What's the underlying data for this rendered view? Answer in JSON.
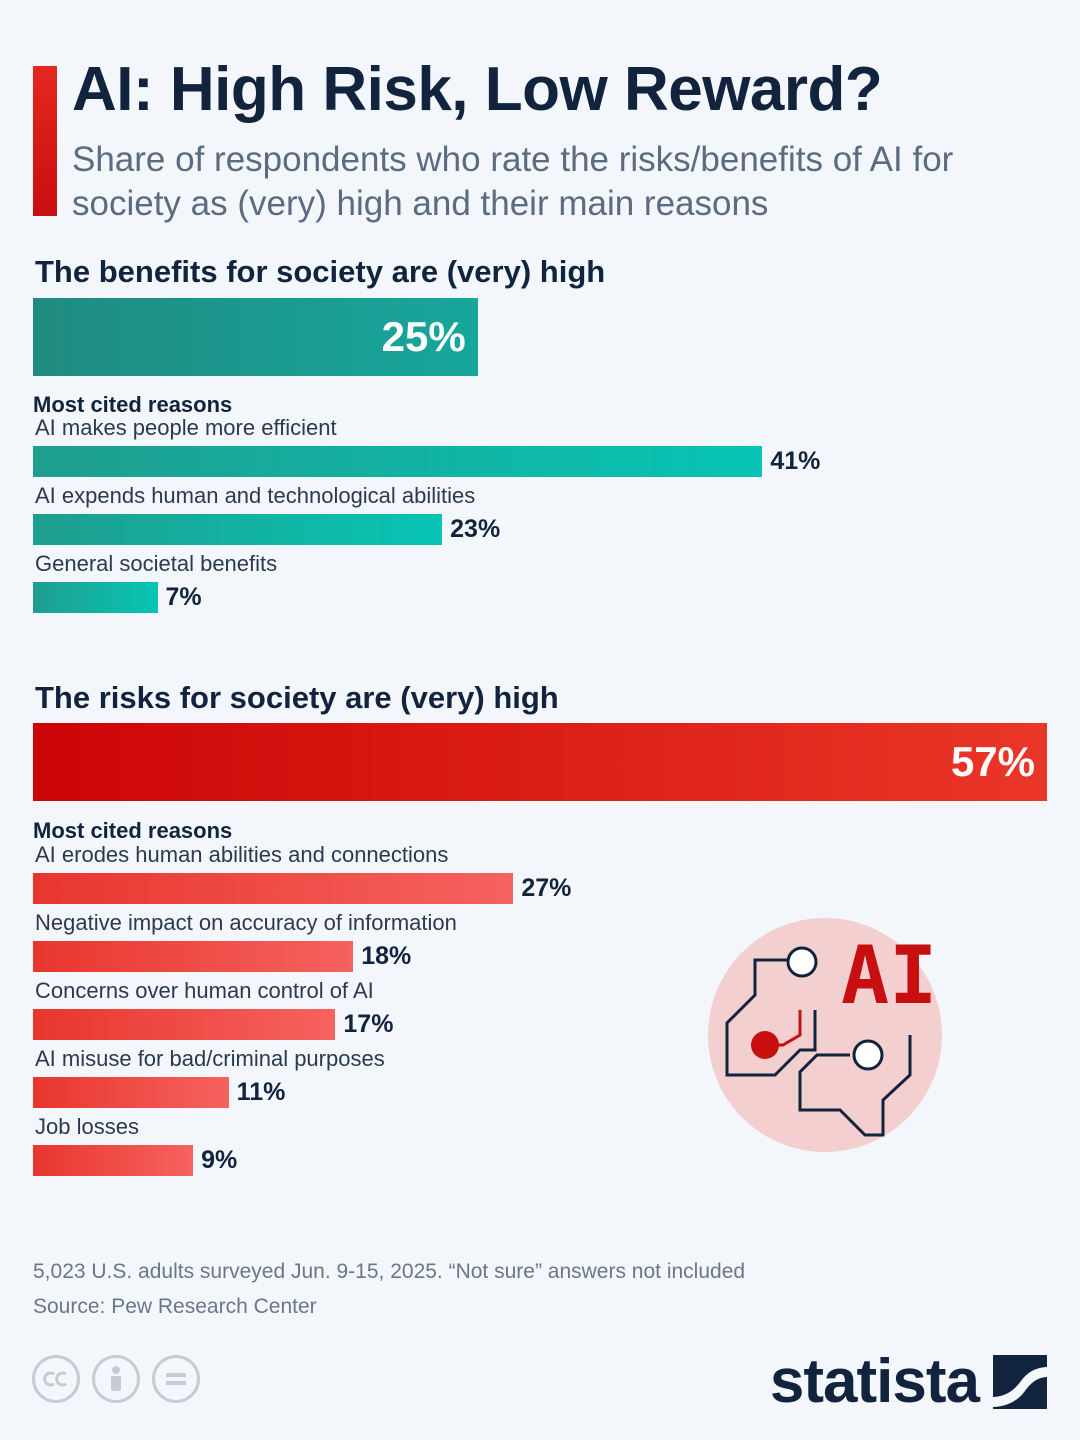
{
  "header": {
    "title": "AI: High Risk, Low Reward?",
    "subtitle": "Share of respondents who rate the risks/benefits of AI for society as (very) high and their main reasons"
  },
  "chart_data": [
    {
      "type": "bar",
      "orientation": "horizontal",
      "title": "The benefits for society are (very) high",
      "headline_value": 25,
      "headline_label": "25%",
      "reasons_heading": "Most cited reasons",
      "categories": [
        "AI makes people more efficient",
        "AI expends human and technological abilities",
        "General societal benefits"
      ],
      "values": [
        41,
        23,
        7
      ],
      "value_labels": [
        "41%",
        "23%",
        "7%"
      ],
      "unit": "%",
      "color": "#17a99c"
    },
    {
      "type": "bar",
      "orientation": "horizontal",
      "title": "The risks for society are (very) high",
      "headline_value": 57,
      "headline_label": "57%",
      "reasons_heading": "Most cited reasons",
      "categories": [
        "AI erodes human abilities and connections",
        "Negative impact on accuracy of information",
        "Concerns over human control of AI",
        "AI misuse for bad/criminal purposes",
        "Job losses"
      ],
      "values": [
        27,
        18,
        17,
        11,
        9
      ],
      "value_labels": [
        "27%",
        "18%",
        "17%",
        "11%",
        "9%"
      ],
      "unit": "%",
      "color": "#e8362e"
    }
  ],
  "illustration": {
    "label": "AI",
    "icon": "ai-circuit-icon"
  },
  "footer": {
    "note": "5,023 U.S. adults surveyed Jun. 9-15, 2025. “Not sure” answers not included",
    "source": "Source: Pew Research Center",
    "license_icons": [
      "cc-icon",
      "attribution-icon",
      "no-derivatives-icon"
    ],
    "brand": "statista"
  }
}
